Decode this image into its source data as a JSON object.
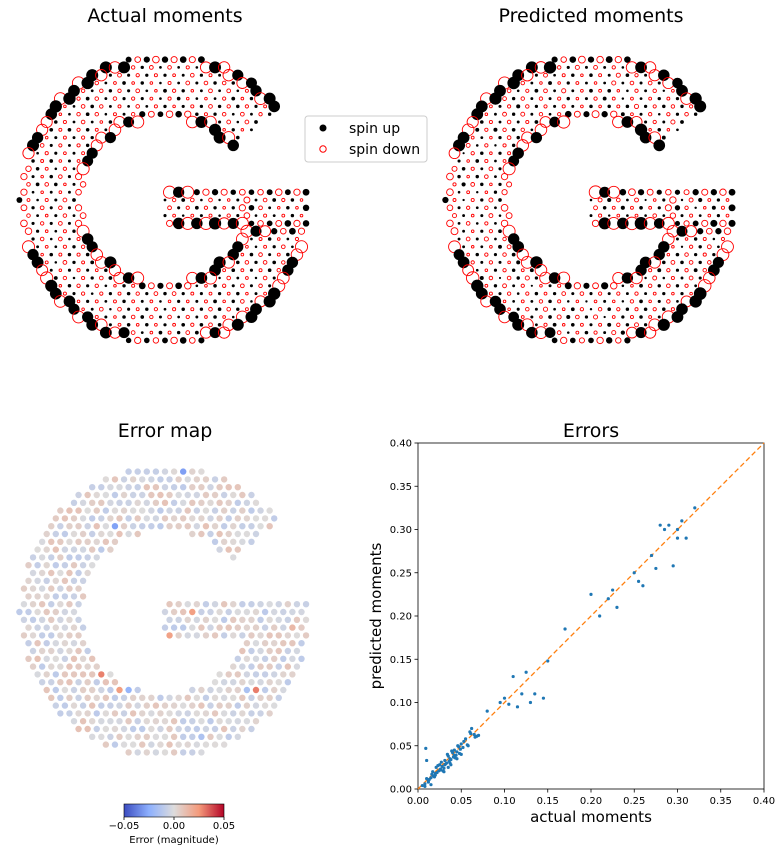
{
  "colors": {
    "spin_up": "#000000",
    "spin_down": "#ff0000",
    "scatter_points": "#1f77b4",
    "identity_line": "#ff7f0e",
    "error_colormap": "coolwarm"
  },
  "chart_data": [
    {
      "type": "scatter",
      "panel": "top-left",
      "title": "Actual moments",
      "description_kind": "lattice map of local magnetic moments inside a G-shaped flake; marker size proportional to moment magnitude",
      "series": [
        {
          "name": "spin up",
          "marker": "filled-circle",
          "color": "#000000"
        },
        {
          "name": "spin down",
          "marker": "open-circle",
          "color": "#ff0000"
        }
      ],
      "axes_visible": false
    },
    {
      "type": "scatter",
      "panel": "top-right",
      "title": "Predicted moments",
      "description_kind": "same lattice map, predicted values",
      "series": [
        {
          "name": "spin up",
          "marker": "filled-circle",
          "color": "#000000"
        },
        {
          "name": "spin down",
          "marker": "open-circle",
          "color": "#ff0000"
        }
      ],
      "axes_visible": false
    },
    {
      "type": "heatmap",
      "panel": "bottom-left",
      "title": "Error map",
      "colorbar": {
        "label": "Error (magnitude)",
        "range": [
          -0.05,
          0.05
        ],
        "ticks": [
          "−0.05",
          "0.00",
          "0.05"
        ],
        "colormap": "coolwarm"
      },
      "axes_visible": false
    },
    {
      "type": "scatter",
      "panel": "bottom-right",
      "title": "Errors",
      "xlabel": "actual moments",
      "ylabel": "predicted moments",
      "xlim": [
        0,
        0.4
      ],
      "ylim": [
        0,
        0.4
      ],
      "xticks": [
        "0.00",
        "0.05",
        "0.10",
        "0.15",
        "0.20",
        "0.25",
        "0.30",
        "0.35",
        "0.40"
      ],
      "yticks": [
        "0.00",
        "0.05",
        "0.10",
        "0.15",
        "0.20",
        "0.25",
        "0.30",
        "0.35",
        "0.40"
      ],
      "grid": false,
      "reference_line": {
        "style": "dashed",
        "from": [
          0,
          0
        ],
        "to": [
          0.4,
          0.4
        ],
        "color": "#ff7f0e"
      },
      "x": [
        0.005,
        0.008,
        0.01,
        0.012,
        0.015,
        0.017,
        0.018,
        0.02,
        0.021,
        0.022,
        0.024,
        0.025,
        0.026,
        0.028,
        0.03,
        0.031,
        0.032,
        0.033,
        0.035,
        0.036,
        0.038,
        0.04,
        0.041,
        0.042,
        0.044,
        0.045,
        0.047,
        0.048,
        0.05,
        0.052,
        0.055,
        0.058,
        0.06,
        0.062,
        0.065,
        0.068,
        0.07,
        0.012,
        0.016,
        0.019,
        0.023,
        0.027,
        0.029,
        0.034,
        0.037,
        0.039,
        0.043,
        0.046,
        0.049,
        0.053,
        0.057,
        0.061,
        0.066,
        0.008,
        0.013,
        0.02,
        0.026,
        0.031,
        0.037,
        0.042,
        0.009,
        0.01,
        0.015,
        0.03,
        0.035,
        0.038,
        0.045,
        0.05,
        0.08,
        0.095,
        0.1,
        0.105,
        0.11,
        0.115,
        0.12,
        0.125,
        0.13,
        0.135,
        0.145,
        0.15,
        0.17,
        0.2,
        0.21,
        0.22,
        0.225,
        0.23,
        0.25,
        0.255,
        0.26,
        0.27,
        0.275,
        0.28,
        0.285,
        0.29,
        0.295,
        0.3,
        0.3,
        0.305,
        0.31,
        0.32
      ],
      "y": [
        0.004,
        0.006,
        0.012,
        0.01,
        0.013,
        0.02,
        0.015,
        0.018,
        0.025,
        0.019,
        0.021,
        0.028,
        0.022,
        0.026,
        0.024,
        0.033,
        0.029,
        0.03,
        0.038,
        0.032,
        0.034,
        0.042,
        0.037,
        0.045,
        0.039,
        0.043,
        0.049,
        0.041,
        0.052,
        0.048,
        0.058,
        0.05,
        0.066,
        0.07,
        0.063,
        0.061,
        0.062,
        0.008,
        0.017,
        0.014,
        0.027,
        0.031,
        0.021,
        0.04,
        0.03,
        0.044,
        0.036,
        0.05,
        0.046,
        0.055,
        0.051,
        0.064,
        0.06,
        0.003,
        0.011,
        0.016,
        0.023,
        0.028,
        0.035,
        0.039,
        0.047,
        0.033,
        0.005,
        0.02,
        0.025,
        0.028,
        0.035,
        0.04,
        0.09,
        0.1,
        0.105,
        0.098,
        0.13,
        0.095,
        0.11,
        0.135,
        0.1,
        0.11,
        0.105,
        0.148,
        0.185,
        0.225,
        0.2,
        0.22,
        0.23,
        0.21,
        0.25,
        0.24,
        0.235,
        0.27,
        0.255,
        0.305,
        0.3,
        0.305,
        0.258,
        0.29,
        0.3,
        0.31,
        0.29,
        0.325
      ]
    }
  ],
  "legend": {
    "entries": [
      "spin up",
      "spin down"
    ],
    "placement": "between top panels"
  }
}
